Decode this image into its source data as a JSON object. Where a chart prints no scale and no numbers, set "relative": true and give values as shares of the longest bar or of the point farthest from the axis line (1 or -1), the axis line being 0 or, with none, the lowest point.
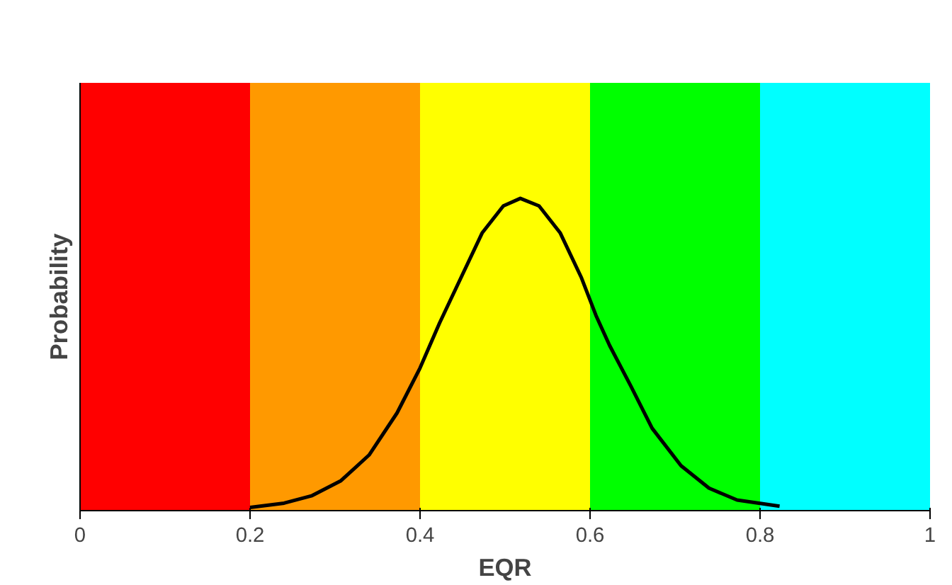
{
  "chart_data": {
    "type": "line",
    "xlabel": "EQR",
    "ylabel": "Probability",
    "relative": true,
    "x": [
      0.2,
      0.24,
      0.273,
      0.307,
      0.34,
      0.373,
      0.4,
      0.423,
      0.448,
      0.473,
      0.498,
      0.518,
      0.54,
      0.565,
      0.59,
      0.607,
      0.623,
      0.648,
      0.673,
      0.707,
      0.74,
      0.773,
      0.823
    ],
    "series": [
      {
        "color": "#000000",
        "values": [
          0.01,
          0.024,
          0.048,
          0.096,
          0.178,
          0.313,
          0.457,
          0.601,
          0.745,
          0.889,
          0.976,
          1.0,
          0.976,
          0.889,
          0.745,
          0.625,
          0.529,
          0.399,
          0.264,
          0.144,
          0.072,
          0.034,
          0.014
        ]
      }
    ],
    "xlim": [
      0,
      1
    ],
    "xticks": [
      0,
      0.2,
      0.4,
      0.6,
      0.8,
      1
    ],
    "bands": [
      {
        "axis": "x",
        "from": 0,
        "to": 0.2,
        "color": "#ff0000"
      },
      {
        "axis": "x",
        "from": 0.2,
        "to": 0.4,
        "color": "#ff9900"
      },
      {
        "axis": "x",
        "from": 0.4,
        "to": 0.6,
        "color": "#ffff00"
      },
      {
        "axis": "x",
        "from": 0.6,
        "to": 0.8,
        "color": "#00ff00"
      },
      {
        "axis": "x",
        "from": 0.8,
        "to": 1,
        "color": "#00ffff"
      }
    ],
    "marker": "none",
    "line_style": "solid"
  }
}
